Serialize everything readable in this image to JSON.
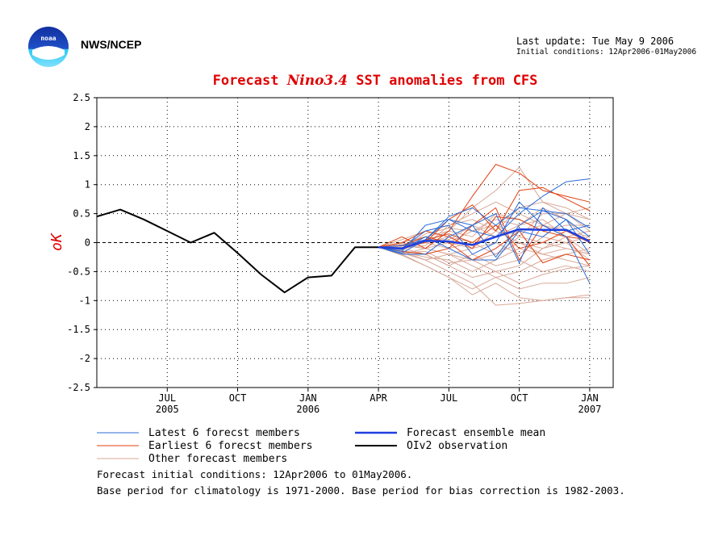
{
  "header": {
    "org_name": "NWS/NCEP",
    "last_update": "Last update: Tue May  9 2006",
    "initial_conditions": "Initial conditions: 12Apr2006-01May2006"
  },
  "logo": {
    "label": "noaa"
  },
  "chart_data": {
    "type": "line",
    "title_prefix": "Forecast ",
    "title_italic": "Nino3.4",
    "title_suffix": " SST anomalies from CFS",
    "ylabel": "oK",
    "ylim": [
      -2.5,
      2.5
    ],
    "yticks": [
      "2.5",
      "2",
      "1.5",
      "1",
      "0.5",
      "0",
      "-0.5",
      "-1",
      "-1.5",
      "-2",
      "-2.5"
    ],
    "xlim": [
      "2005-04",
      "2007-02"
    ],
    "xticks": [
      {
        "date": "2005-07",
        "label": "JUL",
        "year": "2005"
      },
      {
        "date": "2005-10",
        "label": "OCT",
        "year": ""
      },
      {
        "date": "2006-01",
        "label": "JAN",
        "year": "2006"
      },
      {
        "date": "2006-04",
        "label": "APR",
        "year": ""
      },
      {
        "date": "2006-07",
        "label": "JUL",
        "year": ""
      },
      {
        "date": "2006-10",
        "label": "OCT",
        "year": ""
      },
      {
        "date": "2007-01",
        "label": "JAN",
        "year": "2007"
      }
    ],
    "grid": true,
    "legend": [
      {
        "label": "Latest 6 forecst members",
        "color": "#2a6bd6"
      },
      {
        "label": "Forecast ensemble mean",
        "color": "#1f3fe0"
      },
      {
        "label": "Earliest 6 forecst members",
        "color": "#e04010"
      },
      {
        "label": "OIv2 observation",
        "color": "#000000"
      },
      {
        "label": "Other forecast members",
        "color": "#d8a898"
      }
    ],
    "observation": {
      "name": "OIv2 observation",
      "color": "#000000",
      "x": [
        "2005-04",
        "2005-05",
        "2005-06",
        "2005-07",
        "2005-08",
        "2005-09",
        "2005-10",
        "2005-11",
        "2005-12",
        "2006-01",
        "2006-02",
        "2006-03",
        "2006-04"
      ],
      "y": [
        0.45,
        0.57,
        0.4,
        0.2,
        0.0,
        0.17,
        -0.18,
        -0.55,
        -0.86,
        -0.6,
        -0.57,
        -0.08,
        -0.08
      ]
    },
    "ensemble_mean": {
      "name": "Forecast ensemble mean",
      "color": "#1f3fe0",
      "x": [
        "2006-04",
        "2006-05",
        "2006-06",
        "2006-07",
        "2006-08",
        "2006-09",
        "2006-10",
        "2006-11",
        "2006-12",
        "2007-01"
      ],
      "y": [
        -0.08,
        -0.1,
        0.03,
        0.02,
        -0.04,
        0.1,
        0.23,
        0.22,
        0.22,
        0.02
      ]
    },
    "members_x": [
      "2006-04",
      "2006-05",
      "2006-06",
      "2006-07",
      "2006-08",
      "2006-09",
      "2006-10",
      "2006-11",
      "2006-12",
      "2007-01"
    ],
    "latest_members": [
      [
        -0.08,
        -0.15,
        0.3,
        0.4,
        0.2,
        0.1,
        0.5,
        0.8,
        1.05,
        1.1
      ],
      [
        -0.08,
        -0.05,
        0.05,
        0.45,
        0.6,
        0.3,
        0.6,
        0.55,
        0.5,
        0.25
      ],
      [
        -0.08,
        -0.1,
        0.2,
        0.3,
        -0.2,
        0.0,
        0.7,
        0.3,
        0.1,
        -0.7
      ],
      [
        -0.08,
        -0.2,
        -0.2,
        0.1,
        0.3,
        -0.25,
        0.3,
        0.55,
        0.4,
        0.1
      ],
      [
        -0.08,
        -0.12,
        0.1,
        -0.1,
        -0.3,
        -0.3,
        0.2,
        0.1,
        0.4,
        -0.2
      ],
      [
        -0.08,
        -0.18,
        0.05,
        0.4,
        0.3,
        0.5,
        -0.35,
        0.6,
        0.2,
        0.3
      ]
    ],
    "earliest_members": [
      [
        -0.08,
        0.1,
        -0.1,
        0.2,
        0.8,
        1.35,
        1.2,
        0.9,
        0.8,
        0.7
      ],
      [
        -0.08,
        -0.05,
        0.0,
        0.4,
        0.65,
        0.2,
        0.9,
        0.95,
        0.75,
        0.55
      ],
      [
        -0.08,
        -0.15,
        -0.2,
        -0.1,
        0.3,
        0.6,
        -0.3,
        0.3,
        0.1,
        -0.4
      ],
      [
        -0.08,
        -0.05,
        0.1,
        0.0,
        -0.3,
        -0.1,
        0.2,
        -0.35,
        -0.2,
        -0.3
      ],
      [
        -0.08,
        -0.1,
        0.05,
        0.15,
        0.0,
        0.3,
        -0.1,
        0.0,
        0.2,
        0.0
      ],
      [
        -0.08,
        0.0,
        0.2,
        0.1,
        -0.1,
        0.45,
        0.4,
        0.2,
        0.1,
        0.05
      ]
    ],
    "other_members": [
      [
        -0.08,
        -0.2,
        -0.4,
        -0.6,
        -0.9,
        -0.7,
        -0.95,
        -1.0,
        -0.95,
        -0.9
      ],
      [
        -0.08,
        -0.15,
        -0.3,
        -0.5,
        -0.7,
        -1.08,
        -1.05,
        -1.0,
        -0.95,
        -0.95
      ],
      [
        -0.08,
        -0.1,
        -0.2,
        -0.4,
        -0.6,
        -0.5,
        -0.7,
        -0.55,
        -0.45,
        -0.4
      ],
      [
        -0.08,
        0.0,
        0.1,
        0.2,
        0.6,
        0.9,
        1.3,
        0.7,
        0.5,
        0.4
      ],
      [
        -0.08,
        0.05,
        0.2,
        0.3,
        0.5,
        0.7,
        0.5,
        0.3,
        0.5,
        0.2
      ],
      [
        -0.08,
        -0.05,
        -0.1,
        0.0,
        0.2,
        0.4,
        0.3,
        0.6,
        0.4,
        0.0
      ],
      [
        -0.08,
        -0.2,
        -0.1,
        -0.2,
        -0.3,
        -0.2,
        0.0,
        -0.1,
        0.1,
        -0.2
      ],
      [
        -0.08,
        -0.12,
        0.0,
        0.1,
        0.0,
        0.1,
        0.2,
        0.3,
        0.2,
        0.1
      ],
      [
        -0.08,
        -0.18,
        -0.3,
        -0.2,
        -0.4,
        -0.6,
        -0.5,
        -0.3,
        -0.2,
        -0.1
      ],
      [
        -0.08,
        -0.1,
        -0.05,
        0.3,
        0.4,
        0.2,
        0.6,
        0.7,
        0.6,
        0.4
      ],
      [
        -0.08,
        -0.06,
        0.1,
        0.0,
        -0.1,
        0.0,
        -0.2,
        0.1,
        0.0,
        -0.3
      ],
      [
        -0.08,
        -0.14,
        -0.2,
        -0.4,
        -0.2,
        -0.4,
        -0.3,
        -0.5,
        -0.4,
        -0.5
      ],
      [
        -0.08,
        -0.02,
        0.0,
        0.2,
        0.1,
        0.5,
        0.4,
        0.2,
        0.3,
        0.3
      ],
      [
        -0.08,
        -0.16,
        -0.25,
        -0.3,
        -0.5,
        -0.3,
        -0.1,
        -0.2,
        -0.1,
        -0.2
      ],
      [
        -0.08,
        -0.1,
        0.15,
        0.25,
        0.2,
        0.3,
        0.1,
        0.5,
        0.5,
        0.6
      ],
      [
        -0.08,
        -0.22,
        -0.4,
        -0.6,
        -0.8,
        -0.6,
        -0.8,
        -0.7,
        -0.7,
        -0.6
      ],
      [
        -0.08,
        -0.04,
        -0.1,
        -0.2,
        -0.1,
        0.2,
        0.0,
        -0.2,
        -0.3,
        -0.4
      ],
      [
        -0.08,
        -0.12,
        0.05,
        0.05,
        0.3,
        0.1,
        0.3,
        0.4,
        0.1,
        0.2
      ],
      [
        -0.08,
        -0.18,
        -0.15,
        -0.35,
        -0.3,
        -0.5,
        -0.4,
        -0.1,
        0.0,
        0.1
      ],
      [
        -0.08,
        -0.08,
        0.0,
        -0.1,
        0.0,
        -0.2,
        0.1,
        0.0,
        -0.1,
        -0.2
      ]
    ]
  },
  "footnotes": {
    "line1": "Forecast initial conditions: 12Apr2006 to 01May2006.",
    "line2": "Base period for climatology is 1971-2000. Base period for bias correction is 1982-2003."
  }
}
